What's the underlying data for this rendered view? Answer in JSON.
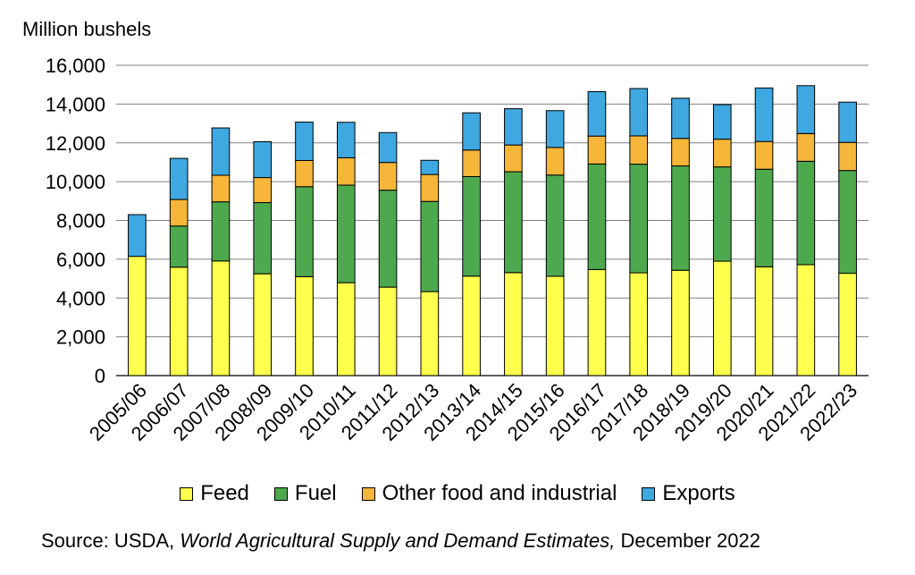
{
  "chart_data": {
    "type": "bar",
    "stacked": true,
    "ylabel": "Million bushels",
    "ylim": [
      0,
      16000
    ],
    "yticks": [
      "0",
      "2,000",
      "4,000",
      "6,000",
      "8,000",
      "10,000",
      "12,000",
      "14,000",
      "16,000"
    ],
    "ytick_values": [
      0,
      2000,
      4000,
      6000,
      8000,
      10000,
      12000,
      14000,
      16000
    ],
    "grid": true,
    "legend_position": "bottom",
    "categories": [
      "2005/06",
      "2006/07",
      "2007/08",
      "2008/09",
      "2009/10",
      "2010/11",
      "2011/12",
      "2012/13",
      "2013/14",
      "2014/15",
      "2015/16",
      "2016/17",
      "2017/18",
      "2018/19",
      "2019/20",
      "2020/21",
      "2021/22",
      "2022/23"
    ],
    "series": [
      {
        "name": "Feed",
        "color": "#FFFF4D",
        "values": [
          6150,
          5590,
          5910,
          5250,
          5100,
          4790,
          4560,
          4330,
          5130,
          5310,
          5120,
          5470,
          5300,
          5430,
          5900,
          5610,
          5720,
          5275
        ]
      },
      {
        "name": "Fuel",
        "color": "#4EA94E",
        "values": [
          0,
          2120,
          3050,
          3670,
          4640,
          5030,
          5000,
          4650,
          5130,
          5200,
          5220,
          5440,
          5600,
          5380,
          4860,
          5030,
          5330,
          5300
        ]
      },
      {
        "name": "Other food and industrial",
        "color": "#F5B63A",
        "values": [
          0,
          1370,
          1370,
          1290,
          1350,
          1410,
          1430,
          1390,
          1370,
          1380,
          1420,
          1440,
          1460,
          1420,
          1430,
          1430,
          1430,
          1450
        ]
      },
      {
        "name": "Exports",
        "color": "#3FA8E0",
        "values": [
          2150,
          2120,
          2440,
          1850,
          1980,
          1830,
          1540,
          730,
          1920,
          1870,
          1900,
          2290,
          2440,
          2070,
          1780,
          2760,
          2470,
          2075
        ]
      }
    ]
  },
  "legend": {
    "items": [
      {
        "label": "Feed",
        "color": "#FFFF4D"
      },
      {
        "label": "Fuel",
        "color": "#4EA94E"
      },
      {
        "label": "Other food and industrial",
        "color": "#F5B63A"
      },
      {
        "label": "Exports",
        "color": "#3FA8E0"
      }
    ]
  },
  "source": {
    "prefix": "Source: USDA, ",
    "title": "World Agricultural Supply and Demand Estimates,",
    "suffix": " December 2022"
  }
}
